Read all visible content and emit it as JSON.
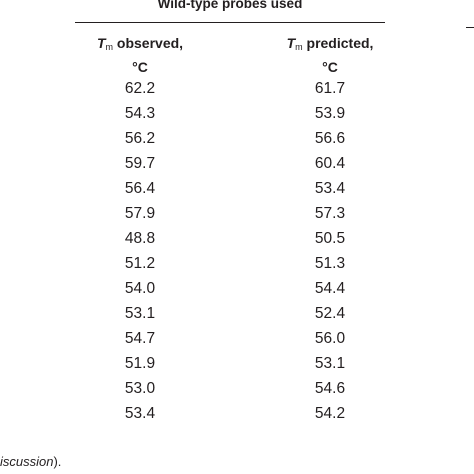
{
  "table": {
    "title": "Wild-type probes used",
    "columns": [
      {
        "symbol": "T",
        "subscript": "m",
        "label": "observed,",
        "unit": "°C"
      },
      {
        "symbol": "T",
        "subscript": "m",
        "label": "predicted,",
        "unit": "°C"
      }
    ],
    "rows": [
      [
        "62.2",
        "61.7"
      ],
      [
        "54.3",
        "53.9"
      ],
      [
        "56.2",
        "56.6"
      ],
      [
        "59.7",
        "60.4"
      ],
      [
        "56.4",
        "53.4"
      ],
      [
        "57.9",
        "57.3"
      ],
      [
        "48.8",
        "50.5"
      ],
      [
        "51.2",
        "51.3"
      ],
      [
        "54.0",
        "54.4"
      ],
      [
        "53.1",
        "52.4"
      ],
      [
        "54.7",
        "56.0"
      ],
      [
        "51.9",
        "53.1"
      ],
      [
        "53.0",
        "54.6"
      ],
      [
        "53.4",
        "54.2"
      ]
    ]
  },
  "footer": {
    "italic": "iscussion",
    "rest": ")."
  }
}
